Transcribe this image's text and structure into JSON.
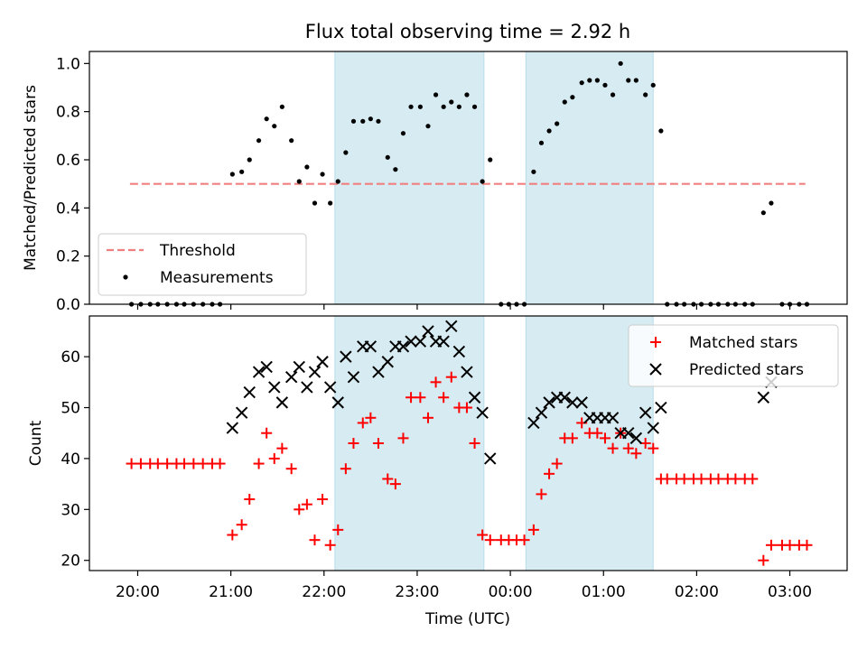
{
  "figure": {
    "title": "Flux total observing time = 2.92 h"
  },
  "chart_data": [
    {
      "type": "scatter",
      "ylabel": "Matched/Predicted stars",
      "ylim": [
        0,
        1.05
      ],
      "yticks": [
        0.0,
        0.2,
        0.4,
        0.6,
        0.8,
        1.0
      ],
      "ytick_labels": [
        "0.0",
        "0.2",
        "0.4",
        "0.6",
        "0.8",
        "1.0"
      ],
      "shaded_ranges": [
        [
          "22:07",
          "23:43"
        ],
        [
          "00:10",
          "01:32"
        ]
      ],
      "shade_color": "#add8e6",
      "legend_position": "lower left",
      "threshold": {
        "name": "Threshold",
        "value": 0.5,
        "x_range": [
          "19:55",
          "03:10"
        ],
        "color": "#f08080",
        "style": "dashed"
      },
      "series": [
        {
          "name": "Measurements",
          "color": "#000000",
          "marker": "dot",
          "points": [
            [
              "19:56",
              0.0
            ],
            [
              "20:02",
              0.0
            ],
            [
              "20:08",
              0.0
            ],
            [
              "20:13",
              0.0
            ],
            [
              "20:19",
              0.0
            ],
            [
              "20:25",
              0.0
            ],
            [
              "20:30",
              0.0
            ],
            [
              "20:36",
              0.0
            ],
            [
              "20:42",
              0.0
            ],
            [
              "20:48",
              0.0
            ],
            [
              "20:53",
              0.0
            ],
            [
              "21:01",
              0.54
            ],
            [
              "21:07",
              0.55
            ],
            [
              "21:12",
              0.6
            ],
            [
              "21:18",
              0.68
            ],
            [
              "21:23",
              0.77
            ],
            [
              "21:28",
              0.74
            ],
            [
              "21:33",
              0.82
            ],
            [
              "21:39",
              0.68
            ],
            [
              "21:44",
              0.51
            ],
            [
              "21:49",
              0.57
            ],
            [
              "21:54",
              0.42
            ],
            [
              "21:59",
              0.54
            ],
            [
              "22:04",
              0.42
            ],
            [
              "22:09",
              0.51
            ],
            [
              "22:14",
              0.63
            ],
            [
              "22:19",
              0.76
            ],
            [
              "22:25",
              0.76
            ],
            [
              "22:30",
              0.77
            ],
            [
              "22:35",
              0.76
            ],
            [
              "22:41",
              0.61
            ],
            [
              "22:46",
              0.56
            ],
            [
              "22:51",
              0.71
            ],
            [
              "22:56",
              0.82
            ],
            [
              "23:02",
              0.82
            ],
            [
              "23:07",
              0.74
            ],
            [
              "23:12",
              0.87
            ],
            [
              "23:17",
              0.82
            ],
            [
              "23:22",
              0.84
            ],
            [
              "23:27",
              0.82
            ],
            [
              "23:32",
              0.87
            ],
            [
              "23:37",
              0.82
            ],
            [
              "23:42",
              0.51
            ],
            [
              "23:47",
              0.6
            ],
            [
              "23:54",
              0.0
            ],
            [
              "23:59",
              0.0
            ],
            [
              "00:04",
              0.0
            ],
            [
              "00:09",
              0.0
            ],
            [
              "00:15",
              0.55
            ],
            [
              "00:20",
              0.67
            ],
            [
              "00:25",
              0.72
            ],
            [
              "00:30",
              0.75
            ],
            [
              "00:35",
              0.84
            ],
            [
              "00:40",
              0.86
            ],
            [
              "00:46",
              0.92
            ],
            [
              "00:51",
              0.93
            ],
            [
              "00:56",
              0.93
            ],
            [
              "01:01",
              0.91
            ],
            [
              "01:06",
              0.87
            ],
            [
              "01:11",
              1.0
            ],
            [
              "01:16",
              0.93
            ],
            [
              "01:21",
              0.93
            ],
            [
              "01:27",
              0.87
            ],
            [
              "01:32",
              0.91
            ],
            [
              "01:37",
              0.72
            ],
            [
              "01:41",
              0.0
            ],
            [
              "01:47",
              0.0
            ],
            [
              "01:52",
              0.0
            ],
            [
              "01:58",
              0.0
            ],
            [
              "02:03",
              0.0
            ],
            [
              "02:09",
              0.0
            ],
            [
              "02:14",
              0.0
            ],
            [
              "02:20",
              0.0
            ],
            [
              "02:25",
              0.0
            ],
            [
              "02:31",
              0.0
            ],
            [
              "02:36",
              0.0
            ],
            [
              "02:43",
              0.38
            ],
            [
              "02:48",
              0.42
            ],
            [
              "02:55",
              0.0
            ],
            [
              "03:00",
              0.0
            ],
            [
              "03:06",
              0.0
            ],
            [
              "03:11",
              0.0
            ]
          ]
        }
      ]
    },
    {
      "type": "scatter",
      "xlabel": "Time (UTC)",
      "ylabel": "Count",
      "ylim": [
        18,
        68
      ],
      "yticks": [
        20,
        30,
        40,
        50,
        60
      ],
      "ytick_labels": [
        "20",
        "30",
        "40",
        "50",
        "60"
      ],
      "xticks": [
        "20:00",
        "21:00",
        "22:00",
        "23:00",
        "00:00",
        "01:00",
        "02:00",
        "03:00"
      ],
      "shaded_ranges": [
        [
          "22:07",
          "23:43"
        ],
        [
          "00:10",
          "01:32"
        ]
      ],
      "shade_color": "#add8e6",
      "legend_position": "upper right",
      "series": [
        {
          "name": "Matched stars",
          "color": "#ff0000",
          "marker": "plus",
          "points": [
            [
              "19:56",
              39
            ],
            [
              "20:02",
              39
            ],
            [
              "20:08",
              39
            ],
            [
              "20:13",
              39
            ],
            [
              "20:19",
              39
            ],
            [
              "20:25",
              39
            ],
            [
              "20:30",
              39
            ],
            [
              "20:36",
              39
            ],
            [
              "20:42",
              39
            ],
            [
              "20:48",
              39
            ],
            [
              "20:53",
              39
            ],
            [
              "21:01",
              25
            ],
            [
              "21:07",
              27
            ],
            [
              "21:12",
              32
            ],
            [
              "21:18",
              39
            ],
            [
              "21:23",
              45
            ],
            [
              "21:28",
              40
            ],
            [
              "21:33",
              42
            ],
            [
              "21:39",
              38
            ],
            [
              "21:44",
              30
            ],
            [
              "21:49",
              31
            ],
            [
              "21:54",
              24
            ],
            [
              "21:59",
              32
            ],
            [
              "22:04",
              23
            ],
            [
              "22:09",
              26
            ],
            [
              "22:14",
              38
            ],
            [
              "22:19",
              43
            ],
            [
              "22:25",
              47
            ],
            [
              "22:30",
              48
            ],
            [
              "22:35",
              43
            ],
            [
              "22:41",
              36
            ],
            [
              "22:46",
              35
            ],
            [
              "22:51",
              44
            ],
            [
              "22:56",
              52
            ],
            [
              "23:02",
              52
            ],
            [
              "23:07",
              48
            ],
            [
              "23:12",
              55
            ],
            [
              "23:17",
              52
            ],
            [
              "23:22",
              56
            ],
            [
              "23:27",
              50
            ],
            [
              "23:32",
              50
            ],
            [
              "23:37",
              43
            ],
            [
              "23:42",
              25
            ],
            [
              "23:47",
              24
            ],
            [
              "23:54",
              24
            ],
            [
              "23:59",
              24
            ],
            [
              "00:04",
              24
            ],
            [
              "00:09",
              24
            ],
            [
              "00:15",
              26
            ],
            [
              "00:20",
              33
            ],
            [
              "00:25",
              37
            ],
            [
              "00:30",
              39
            ],
            [
              "00:35",
              44
            ],
            [
              "00:40",
              44
            ],
            [
              "00:46",
              47
            ],
            [
              "00:51",
              45
            ],
            [
              "00:56",
              45
            ],
            [
              "01:01",
              44
            ],
            [
              "01:06",
              42
            ],
            [
              "01:11",
              45
            ],
            [
              "01:16",
              42
            ],
            [
              "01:21",
              41
            ],
            [
              "01:27",
              43
            ],
            [
              "01:32",
              42
            ],
            [
              "01:37",
              36
            ],
            [
              "01:41",
              36
            ],
            [
              "01:47",
              36
            ],
            [
              "01:52",
              36
            ],
            [
              "01:58",
              36
            ],
            [
              "02:03",
              36
            ],
            [
              "02:09",
              36
            ],
            [
              "02:14",
              36
            ],
            [
              "02:20",
              36
            ],
            [
              "02:25",
              36
            ],
            [
              "02:31",
              36
            ],
            [
              "02:36",
              36
            ],
            [
              "02:43",
              20
            ],
            [
              "02:48",
              23
            ],
            [
              "02:55",
              23
            ],
            [
              "03:00",
              23
            ],
            [
              "03:06",
              23
            ],
            [
              "03:11",
              23
            ]
          ]
        },
        {
          "name": "Predicted stars",
          "color": "#000000",
          "marker": "x",
          "points": [
            [
              "21:01",
              46
            ],
            [
              "21:07",
              49
            ],
            [
              "21:12",
              53
            ],
            [
              "21:18",
              57
            ],
            [
              "21:23",
              58
            ],
            [
              "21:28",
              54
            ],
            [
              "21:33",
              51
            ],
            [
              "21:39",
              56
            ],
            [
              "21:44",
              58
            ],
            [
              "21:49",
              54
            ],
            [
              "21:54",
              57
            ],
            [
              "21:59",
              59
            ],
            [
              "22:04",
              54
            ],
            [
              "22:09",
              51
            ],
            [
              "22:14",
              60
            ],
            [
              "22:19",
              56
            ],
            [
              "22:25",
              62
            ],
            [
              "22:30",
              62
            ],
            [
              "22:35",
              57
            ],
            [
              "22:41",
              59
            ],
            [
              "22:46",
              62
            ],
            [
              "22:51",
              62
            ],
            [
              "22:56",
              63
            ],
            [
              "23:02",
              63
            ],
            [
              "23:07",
              65
            ],
            [
              "23:12",
              63
            ],
            [
              "23:17",
              63
            ],
            [
              "23:22",
              66
            ],
            [
              "23:27",
              61
            ],
            [
              "23:32",
              57
            ],
            [
              "23:37",
              52
            ],
            [
              "23:42",
              49
            ],
            [
              "23:47",
              40
            ],
            [
              "00:15",
              47
            ],
            [
              "00:20",
              49
            ],
            [
              "00:25",
              51
            ],
            [
              "00:30",
              52
            ],
            [
              "00:35",
              52
            ],
            [
              "00:40",
              51
            ],
            [
              "00:46",
              51
            ],
            [
              "00:51",
              48
            ],
            [
              "00:56",
              48
            ],
            [
              "01:01",
              48
            ],
            [
              "01:06",
              48
            ],
            [
              "01:11",
              45
            ],
            [
              "01:16",
              45
            ],
            [
              "01:21",
              44
            ],
            [
              "01:27",
              49
            ],
            [
              "01:32",
              46
            ],
            [
              "01:37",
              50
            ],
            [
              "02:43",
              52
            ],
            [
              "02:48",
              55
            ]
          ]
        }
      ]
    }
  ]
}
